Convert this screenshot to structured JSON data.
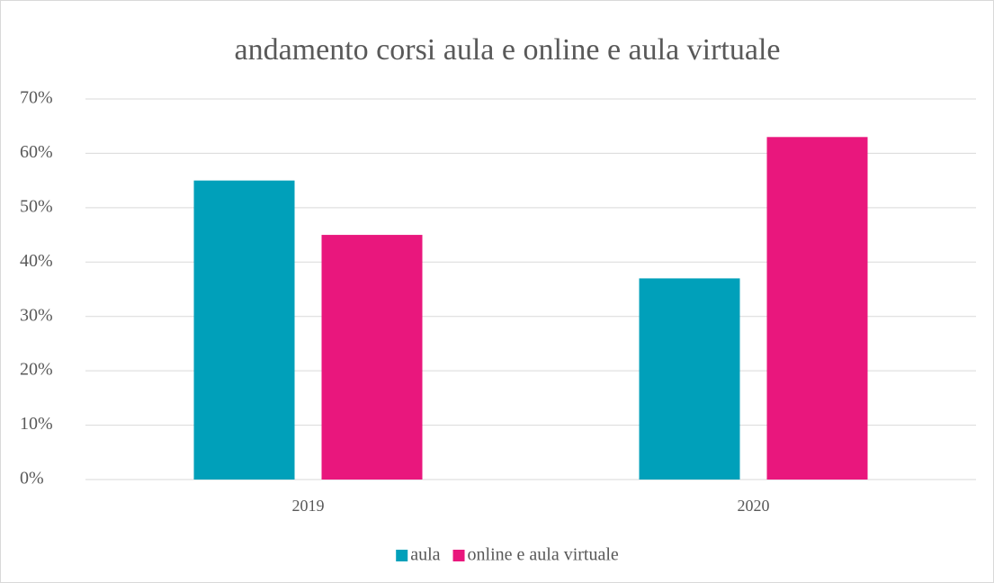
{
  "chart_data": {
    "type": "bar",
    "title": "andamento corsi aula e online e aula virtuale",
    "categories": [
      "2019",
      "2020"
    ],
    "series": [
      {
        "name": "aula",
        "color": "#00a0ba",
        "values": [
          55,
          37
        ]
      },
      {
        "name": "online e aula virtuale",
        "color": "#e9177d",
        "values": [
          45,
          63
        ]
      }
    ],
    "ylim": [
      0,
      70
    ],
    "yticks": [
      {
        "value": 0,
        "label": "0%"
      },
      {
        "value": 10,
        "label": "10%"
      },
      {
        "value": 20,
        "label": "20%"
      },
      {
        "value": 30,
        "label": "30%"
      },
      {
        "value": 40,
        "label": "40%"
      },
      {
        "value": 50,
        "label": "50%"
      },
      {
        "value": 60,
        "label": "60%"
      },
      {
        "value": 70,
        "label": "70%"
      }
    ],
    "grid": true,
    "legend": "bottom"
  }
}
